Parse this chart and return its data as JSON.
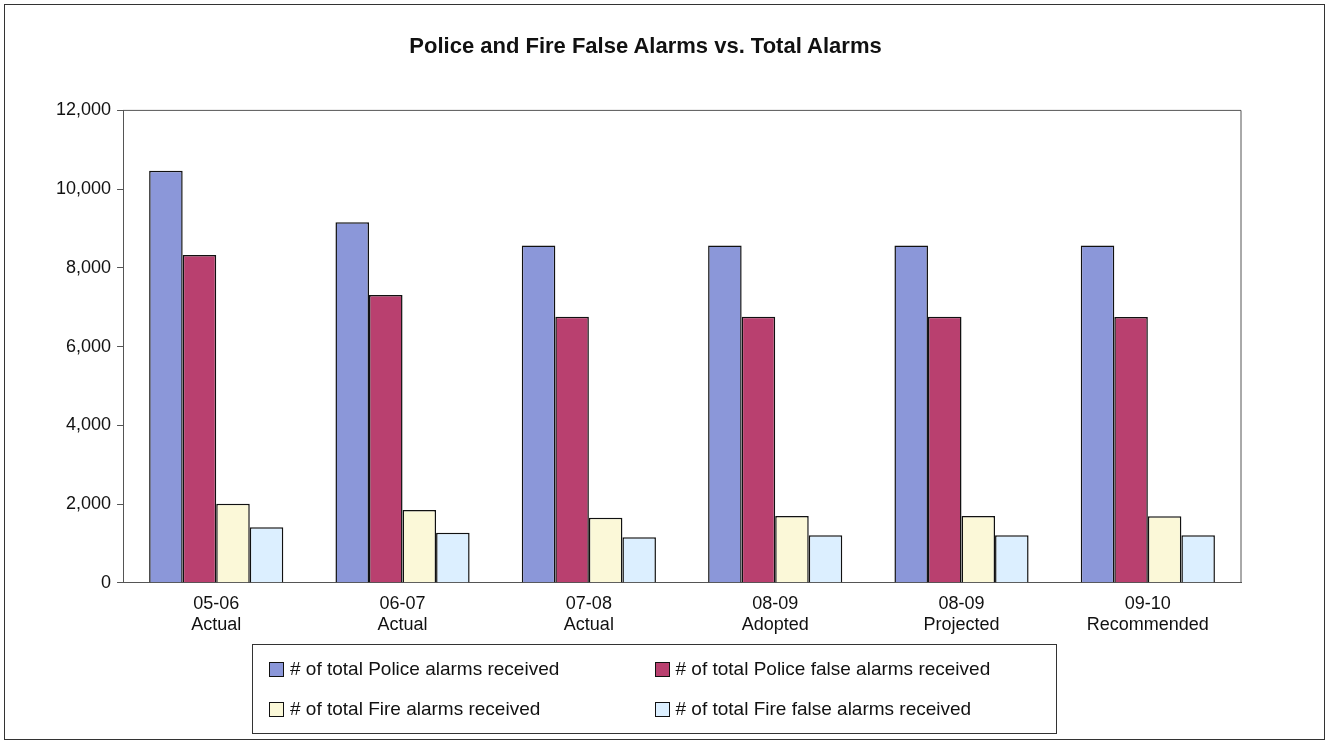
{
  "chart_data": {
    "type": "bar",
    "title": "Police and Fire False Alarms vs. Total Alarms",
    "categories": [
      "05-06\nActual",
      "06-07\nActual",
      "07-08\nActual",
      "08-09\nAdopted",
      "08-09\nProjected",
      "09-10\nRecommended"
    ],
    "series": [
      {
        "name": "# of total Police alarms received",
        "color": "#8b97d9",
        "values": [
          10470,
          9160,
          8570,
          8570,
          8570,
          8570
        ]
      },
      {
        "name": "# of total Police false alarms received",
        "color": "#b9406f",
        "values": [
          8330,
          7310,
          6760,
          6760,
          6760,
          6750
        ]
      },
      {
        "name": "# of total Fire alarms received",
        "color": "#fbf8d8",
        "values": [
          2010,
          1850,
          1650,
          1700,
          1700,
          1690
        ]
      },
      {
        "name": "# of total Fire false alarms received",
        "color": "#dcefff",
        "values": [
          1410,
          1270,
          1160,
          1210,
          1210,
          1210
        ]
      }
    ],
    "ylim": [
      0,
      12000
    ],
    "yticks": [
      0,
      {
        "value": 2000,
        "label": "2,000"
      },
      {
        "value": 4000,
        "label": "4,000"
      },
      {
        "value": 6000,
        "label": "6,000"
      },
      {
        "value": 8000,
        "label": "8,000"
      },
      {
        "value": 10000,
        "label": "10,000"
      },
      {
        "value": 12000,
        "label": "12,000"
      }
    ],
    "grid": false,
    "legend": "bottom"
  }
}
